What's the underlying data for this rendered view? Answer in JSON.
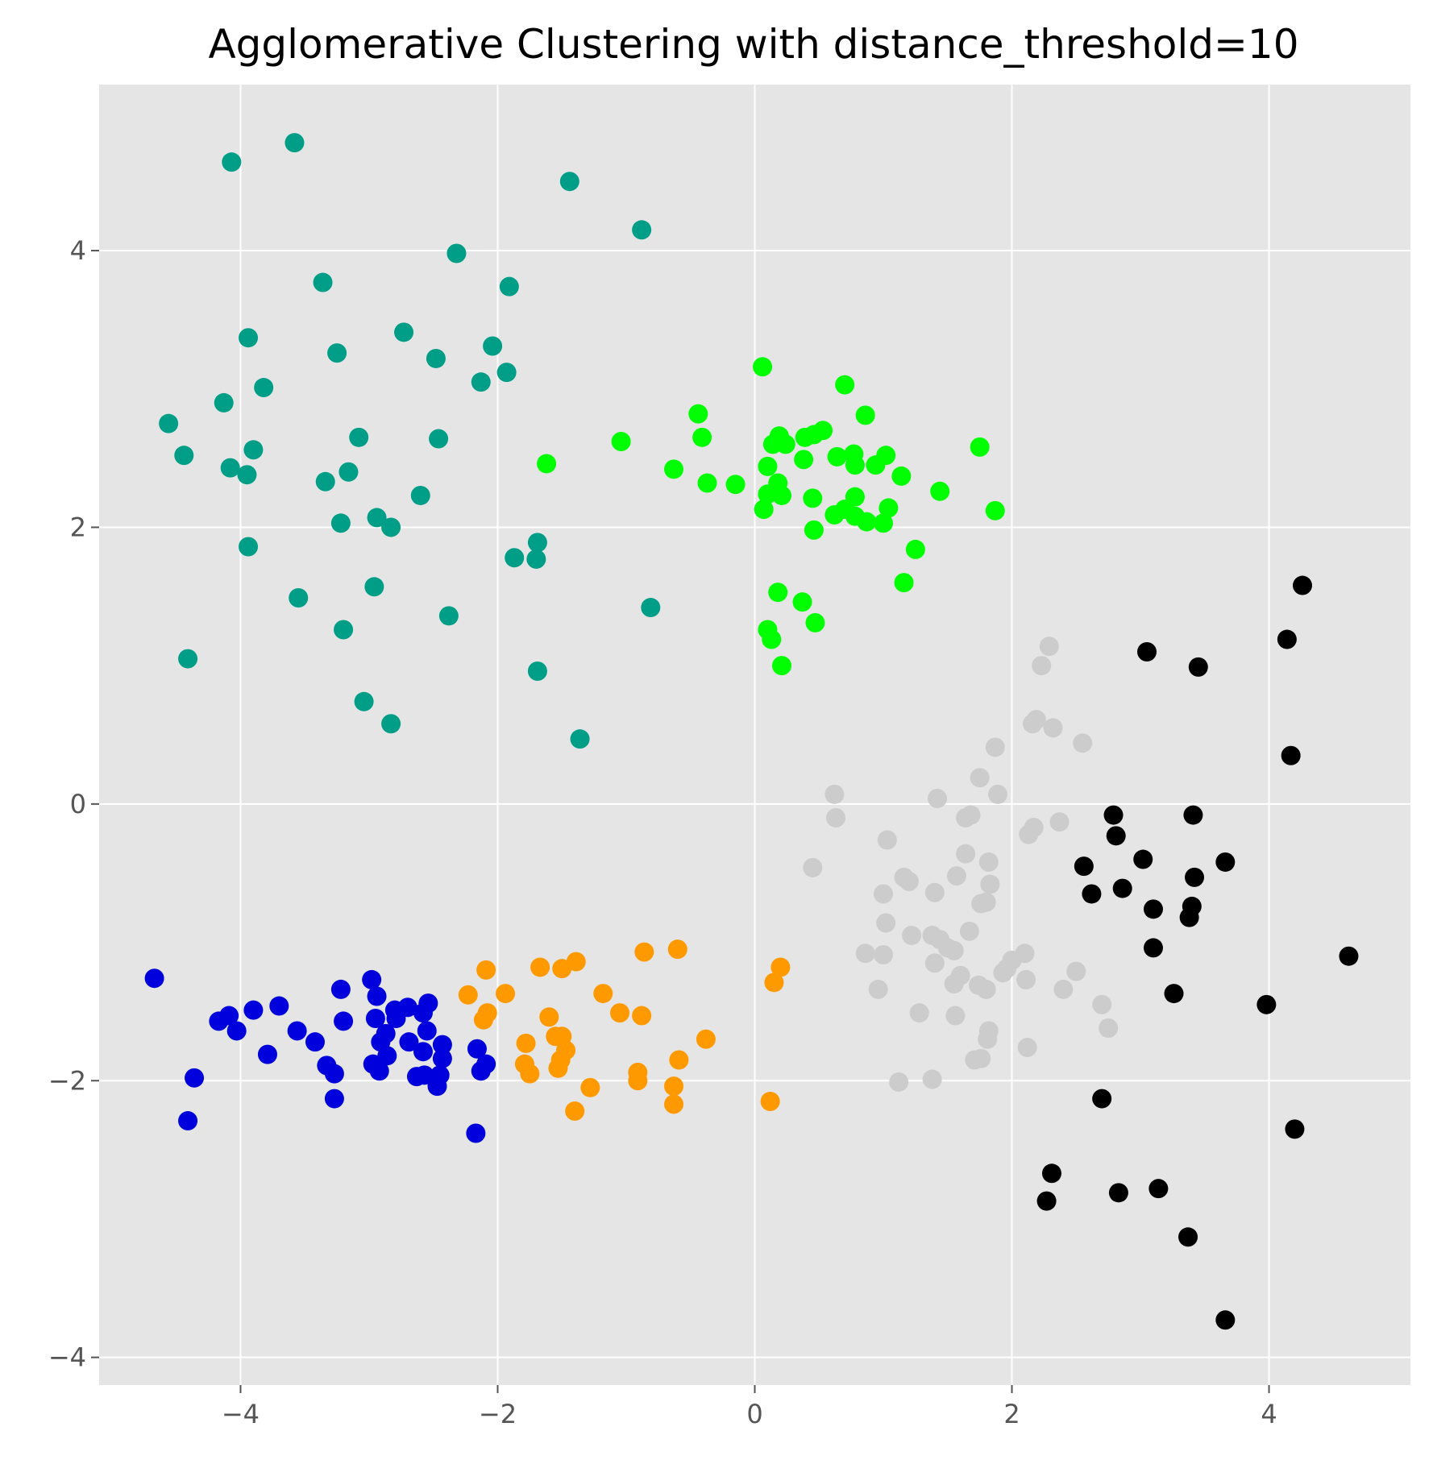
{
  "chart_data": {
    "type": "scatter",
    "title": "Agglomerative Clustering with distance_threshold=10",
    "xlabel": "",
    "ylabel": "",
    "xlim": [
      -5.1,
      5.1
    ],
    "ylim": [
      -4.2,
      5.2
    ],
    "xticks": [
      -4,
      -2,
      0,
      2,
      4
    ],
    "yticks": [
      -4,
      -2,
      0,
      2,
      4
    ],
    "xtick_labels": [
      "−4",
      "−2",
      "0",
      "2",
      "4"
    ],
    "ytick_labels": [
      "−4",
      "−2",
      "0",
      "2",
      "4"
    ],
    "grid": true,
    "background": "#e5e5e5",
    "grid_color": "#ffffff",
    "series": [
      {
        "color": "#009e87",
        "points": [
          [
            -3.58,
            4.78
          ],
          [
            -4.07,
            4.64
          ],
          [
            -1.44,
            4.5
          ],
          [
            -0.88,
            4.15
          ],
          [
            -2.32,
            3.98
          ],
          [
            -3.36,
            3.77
          ],
          [
            -1.91,
            3.74
          ],
          [
            -3.94,
            3.37
          ],
          [
            -2.73,
            3.41
          ],
          [
            -3.25,
            3.26
          ],
          [
            -2.04,
            3.31
          ],
          [
            -2.48,
            3.22
          ],
          [
            -1.93,
            3.12
          ],
          [
            -2.13,
            3.05
          ],
          [
            -3.82,
            3.01
          ],
          [
            -4.13,
            2.9
          ],
          [
            -4.56,
            2.75
          ],
          [
            -4.44,
            2.52
          ],
          [
            -3.9,
            2.56
          ],
          [
            -3.08,
            2.65
          ],
          [
            -2.46,
            2.64
          ],
          [
            -4.08,
            2.43
          ],
          [
            -3.95,
            2.38
          ],
          [
            -3.16,
            2.4
          ],
          [
            -3.34,
            2.33
          ],
          [
            -2.6,
            2.23
          ],
          [
            -3.22,
            2.03
          ],
          [
            -2.94,
            2.07
          ],
          [
            -2.83,
            2.0
          ],
          [
            -3.94,
            1.86
          ],
          [
            -1.69,
            1.89
          ],
          [
            -1.7,
            1.77
          ],
          [
            -1.87,
            1.78
          ],
          [
            -2.96,
            1.57
          ],
          [
            -3.55,
            1.49
          ],
          [
            -2.38,
            1.36
          ],
          [
            -0.81,
            1.42
          ],
          [
            -3.2,
            1.26
          ],
          [
            -4.41,
            1.05
          ],
          [
            -1.69,
            0.96
          ],
          [
            -3.04,
            0.74
          ],
          [
            -2.83,
            0.58
          ],
          [
            -1.36,
            0.47
          ]
        ]
      },
      {
        "color": "#00ff00",
        "points": [
          [
            0.06,
            3.16
          ],
          [
            0.7,
            3.03
          ],
          [
            -0.44,
            2.82
          ],
          [
            0.86,
            2.81
          ],
          [
            -0.41,
            2.65
          ],
          [
            -1.04,
            2.62
          ],
          [
            0.53,
            2.7
          ],
          [
            0.46,
            2.67
          ],
          [
            0.39,
            2.65
          ],
          [
            0.19,
            2.66
          ],
          [
            0.14,
            2.6
          ],
          [
            0.24,
            2.6
          ],
          [
            1.75,
            2.58
          ],
          [
            0.77,
            2.53
          ],
          [
            0.64,
            2.51
          ],
          [
            1.02,
            2.52
          ],
          [
            0.1,
            2.44
          ],
          [
            0.38,
            2.49
          ],
          [
            0.78,
            2.45
          ],
          [
            0.94,
            2.45
          ],
          [
            -1.62,
            2.46
          ],
          [
            -0.63,
            2.42
          ],
          [
            1.14,
            2.37
          ],
          [
            -0.37,
            2.32
          ],
          [
            -0.15,
            2.31
          ],
          [
            0.18,
            2.32
          ],
          [
            1.44,
            2.26
          ],
          [
            0.1,
            2.24
          ],
          [
            0.21,
            2.23
          ],
          [
            0.45,
            2.21
          ],
          [
            0.78,
            2.22
          ],
          [
            0.07,
            2.13
          ],
          [
            0.7,
            2.13
          ],
          [
            1.04,
            2.14
          ],
          [
            0.62,
            2.09
          ],
          [
            0.78,
            2.08
          ],
          [
            1.87,
            2.12
          ],
          [
            0.87,
            2.04
          ],
          [
            1.0,
            2.03
          ],
          [
            0.46,
            1.98
          ],
          [
            1.25,
            1.84
          ],
          [
            1.16,
            1.6
          ],
          [
            0.18,
            1.53
          ],
          [
            0.37,
            1.46
          ],
          [
            0.47,
            1.31
          ],
          [
            0.1,
            1.26
          ],
          [
            0.13,
            1.19
          ],
          [
            0.21,
            1.0
          ]
        ]
      },
      {
        "color": "#cccccc",
        "points": [
          [
            2.29,
            1.14
          ],
          [
            2.23,
            1.0
          ],
          [
            2.19,
            0.61
          ],
          [
            2.16,
            0.58
          ],
          [
            2.32,
            0.55
          ],
          [
            2.55,
            0.44
          ],
          [
            1.87,
            0.41
          ],
          [
            1.75,
            0.19
          ],
          [
            0.62,
            0.07
          ],
          [
            1.42,
            0.04
          ],
          [
            1.89,
            0.07
          ],
          [
            0.63,
            -0.1
          ],
          [
            1.64,
            -0.1
          ],
          [
            1.68,
            -0.08
          ],
          [
            2.17,
            -0.17
          ],
          [
            2.37,
            -0.13
          ],
          [
            2.13,
            -0.22
          ],
          [
            1.03,
            -0.26
          ],
          [
            1.64,
            -0.36
          ],
          [
            0.45,
            -0.46
          ],
          [
            1.82,
            -0.42
          ],
          [
            1.57,
            -0.52
          ],
          [
            1.16,
            -0.53
          ],
          [
            1.2,
            -0.56
          ],
          [
            1.4,
            -0.64
          ],
          [
            1.83,
            -0.58
          ],
          [
            1.0,
            -0.65
          ],
          [
            1.8,
            -0.71
          ],
          [
            1.76,
            -0.72
          ],
          [
            1.02,
            -0.86
          ],
          [
            1.67,
            -0.92
          ],
          [
            1.22,
            -0.95
          ],
          [
            1.38,
            -0.95
          ],
          [
            1.44,
            -0.98
          ],
          [
            1.5,
            -1.04
          ],
          [
            1.55,
            -1.06
          ],
          [
            0.86,
            -1.08
          ],
          [
            1.0,
            -1.09
          ],
          [
            2.1,
            -1.08
          ],
          [
            2.0,
            -1.13
          ],
          [
            1.4,
            -1.15
          ],
          [
            1.96,
            -1.19
          ],
          [
            1.93,
            -1.22
          ],
          [
            2.5,
            -1.21
          ],
          [
            1.6,
            -1.24
          ],
          [
            2.11,
            -1.27
          ],
          [
            1.55,
            -1.3
          ],
          [
            1.74,
            -1.31
          ],
          [
            1.8,
            -1.34
          ],
          [
            0.96,
            -1.34
          ],
          [
            2.4,
            -1.34
          ],
          [
            2.7,
            -1.45
          ],
          [
            1.28,
            -1.51
          ],
          [
            1.56,
            -1.53
          ],
          [
            2.75,
            -1.62
          ],
          [
            1.82,
            -1.64
          ],
          [
            1.81,
            -1.7
          ],
          [
            2.12,
            -1.76
          ],
          [
            1.76,
            -1.84
          ],
          [
            1.71,
            -1.85
          ],
          [
            1.12,
            -2.01
          ],
          [
            1.38,
            -1.99
          ]
        ]
      },
      {
        "color": "#000000",
        "points": [
          [
            4.26,
            1.58
          ],
          [
            4.14,
            1.19
          ],
          [
            3.05,
            1.1
          ],
          [
            3.45,
            0.99
          ],
          [
            4.17,
            0.35
          ],
          [
            2.79,
            -0.08
          ],
          [
            3.41,
            -0.08
          ],
          [
            2.81,
            -0.23
          ],
          [
            3.02,
            -0.4
          ],
          [
            3.66,
            -0.42
          ],
          [
            2.56,
            -0.45
          ],
          [
            3.42,
            -0.53
          ],
          [
            2.86,
            -0.61
          ],
          [
            2.62,
            -0.65
          ],
          [
            3.1,
            -0.76
          ],
          [
            3.4,
            -0.74
          ],
          [
            3.38,
            -0.82
          ],
          [
            3.1,
            -1.04
          ],
          [
            4.62,
            -1.1
          ],
          [
            3.26,
            -1.37
          ],
          [
            3.98,
            -1.45
          ],
          [
            2.7,
            -2.13
          ],
          [
            4.2,
            -2.35
          ],
          [
            2.31,
            -2.67
          ],
          [
            2.27,
            -2.87
          ],
          [
            2.83,
            -2.81
          ],
          [
            3.14,
            -2.78
          ],
          [
            3.37,
            -3.13
          ],
          [
            3.66,
            -3.73
          ]
        ]
      },
      {
        "color": "#0000dd",
        "points": [
          [
            -4.67,
            -1.26
          ],
          [
            -2.98,
            -1.27
          ],
          [
            -3.22,
            -1.34
          ],
          [
            -2.94,
            -1.39
          ],
          [
            -2.54,
            -1.44
          ],
          [
            -2.7,
            -1.47
          ],
          [
            -3.7,
            -1.46
          ],
          [
            -3.9,
            -1.49
          ],
          [
            -2.8,
            -1.49
          ],
          [
            -2.58,
            -1.51
          ],
          [
            -4.09,
            -1.53
          ],
          [
            -4.17,
            -1.57
          ],
          [
            -3.2,
            -1.57
          ],
          [
            -2.95,
            -1.55
          ],
          [
            -2.79,
            -1.55
          ],
          [
            -4.03,
            -1.64
          ],
          [
            -3.56,
            -1.64
          ],
          [
            -2.55,
            -1.64
          ],
          [
            -2.87,
            -1.66
          ],
          [
            -3.42,
            -1.72
          ],
          [
            -2.91,
            -1.72
          ],
          [
            -2.69,
            -1.72
          ],
          [
            -2.43,
            -1.74
          ],
          [
            -2.16,
            -1.77
          ],
          [
            -2.58,
            -1.79
          ],
          [
            -3.79,
            -1.81
          ],
          [
            -2.86,
            -1.82
          ],
          [
            -2.43,
            -1.84
          ],
          [
            -2.09,
            -1.88
          ],
          [
            -2.97,
            -1.88
          ],
          [
            -3.33,
            -1.89
          ],
          [
            -2.92,
            -1.93
          ],
          [
            -2.13,
            -1.93
          ],
          [
            -3.27,
            -1.95
          ],
          [
            -2.45,
            -1.96
          ],
          [
            -2.63,
            -1.97
          ],
          [
            -2.57,
            -1.96
          ],
          [
            -4.36,
            -1.98
          ],
          [
            -2.47,
            -2.04
          ],
          [
            -3.27,
            -2.13
          ],
          [
            -4.41,
            -2.29
          ],
          [
            -2.17,
            -2.38
          ]
        ]
      },
      {
        "color": "#ff9900",
        "points": [
          [
            -0.6,
            -1.05
          ],
          [
            -0.86,
            -1.07
          ],
          [
            -1.39,
            -1.14
          ],
          [
            -1.67,
            -1.18
          ],
          [
            -1.5,
            -1.19
          ],
          [
            0.2,
            -1.18
          ],
          [
            -2.09,
            -1.2
          ],
          [
            0.15,
            -1.29
          ],
          [
            -1.94,
            -1.37
          ],
          [
            -1.18,
            -1.37
          ],
          [
            -2.23,
            -1.38
          ],
          [
            -2.08,
            -1.51
          ],
          [
            -1.05,
            -1.51
          ],
          [
            -0.88,
            -1.53
          ],
          [
            -1.6,
            -1.54
          ],
          [
            -2.11,
            -1.56
          ],
          [
            -1.55,
            -1.68
          ],
          [
            -1.5,
            -1.68
          ],
          [
            -0.38,
            -1.7
          ],
          [
            -1.78,
            -1.73
          ],
          [
            -1.47,
            -1.78
          ],
          [
            -1.51,
            -1.85
          ],
          [
            -0.59,
            -1.85
          ],
          [
            -1.79,
            -1.88
          ],
          [
            -1.53,
            -1.91
          ],
          [
            -1.75,
            -1.95
          ],
          [
            -0.91,
            -1.94
          ],
          [
            -0.91,
            -2.0
          ],
          [
            -0.63,
            -2.04
          ],
          [
            -1.28,
            -2.05
          ],
          [
            -0.63,
            -2.17
          ],
          [
            0.12,
            -2.15
          ],
          [
            -1.4,
            -2.22
          ]
        ]
      }
    ]
  }
}
